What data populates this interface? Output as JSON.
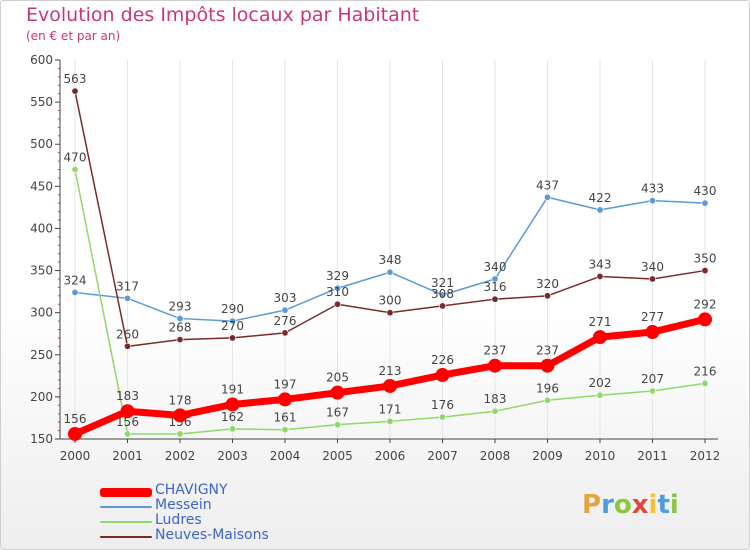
{
  "header": {
    "title": "Evolution des Impôts locaux par Habitant",
    "subtitle": "(en € et par an)"
  },
  "logo": {
    "text": "Proxiti",
    "colors": [
      "#e8a23a",
      "#4a9ee0",
      "#8cc63f",
      "#e04a3a",
      "#f2c230",
      "#4a9ee0",
      "#8cc63f"
    ]
  },
  "chart_data": {
    "type": "line",
    "x": [
      "2000",
      "2001",
      "2002",
      "2003",
      "2004",
      "2005",
      "2006",
      "2007",
      "2008",
      "2009",
      "2010",
      "2011",
      "2012"
    ],
    "ylim": [
      150,
      600
    ],
    "yticks": [
      "150",
      "200",
      "250",
      "300",
      "350",
      "400",
      "450",
      "500",
      "550",
      "600"
    ],
    "grid": "vertical",
    "legend_position": "bottom-left",
    "series": [
      {
        "name": "CHAVIGNY",
        "color": "#ff0000",
        "values": [
          156,
          183,
          178,
          191,
          197,
          205,
          213,
          226,
          237,
          237,
          271,
          277,
          292
        ],
        "labels": [
          "156",
          "183",
          "178",
          "191",
          "197",
          "205",
          "213",
          "226",
          "237",
          "237",
          "271",
          "277",
          "292"
        ]
      },
      {
        "name": "Messein",
        "color": "#5b9bd5",
        "values": [
          324,
          317,
          293,
          290,
          303,
          329,
          348,
          321,
          340,
          437,
          422,
          433,
          430
        ],
        "labels": [
          "324",
          "317",
          "293",
          "290",
          "303",
          "329",
          "348",
          "321",
          "340",
          "437",
          "422",
          "433",
          "430"
        ]
      },
      {
        "name": "Ludres",
        "color": "#8fd86a",
        "values": [
          470,
          156,
          156,
          162,
          161,
          167,
          171,
          176,
          183,
          196,
          202,
          207,
          216
        ],
        "labels": [
          "470",
          "156",
          "156",
          "162",
          "161",
          "167",
          "171",
          "176",
          "183",
          "196",
          "202",
          "207",
          "216"
        ]
      },
      {
        "name": "Neuves-Maisons",
        "color": "#7a2a2a",
        "values": [
          563,
          260,
          268,
          270,
          276,
          310,
          300,
          308,
          316,
          320,
          343,
          340,
          350
        ],
        "labels": [
          "563",
          "260",
          "268",
          "270",
          "276",
          "310",
          "300",
          "308",
          "316",
          "320",
          "343",
          "340",
          "350"
        ]
      }
    ]
  }
}
